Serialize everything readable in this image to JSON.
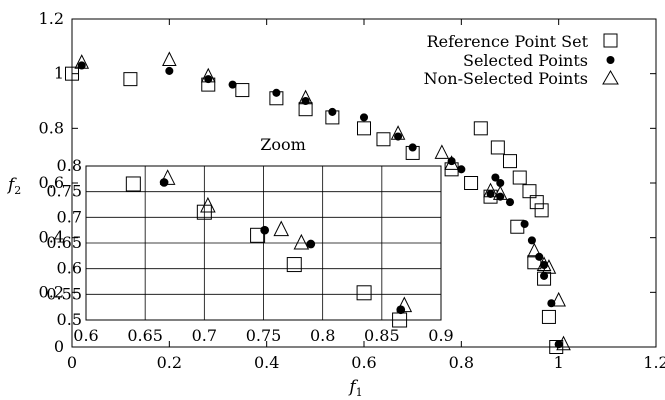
{
  "chart_data": [
    {
      "type": "scatter",
      "title": "",
      "xlabel": "f",
      "xlabel_sub": "1",
      "ylabel": "f",
      "ylabel_sub": "2",
      "xlim": [
        0,
        1.2
      ],
      "ylim": [
        0,
        1.2
      ],
      "xticks": [
        "0",
        "0.2",
        "0.4",
        "0.6",
        "0.8",
        "1",
        "1.2"
      ],
      "yticks": [
        "0",
        "0.2",
        "0.4",
        "0.6",
        "0.8",
        "1",
        "1.2"
      ],
      "grid": false,
      "legend_position": "top-right",
      "series": [
        {
          "name": "Reference Point Set",
          "marker": "open-square",
          "points": [
            [
              0.0,
              1.0
            ],
            [
              0.12,
              0.98
            ],
            [
              0.28,
              0.96
            ],
            [
              0.35,
              0.94
            ],
            [
              0.42,
              0.91
            ],
            [
              0.48,
              0.87
            ],
            [
              0.535,
              0.84
            ],
            [
              0.6,
              0.8
            ],
            [
              0.64,
              0.76
            ],
            [
              0.7,
              0.71
            ],
            [
              0.78,
              0.65
            ],
            [
              0.82,
              0.6
            ],
            [
              0.86,
              0.55
            ],
            [
              0.915,
              0.44
            ],
            [
              0.95,
              0.31
            ],
            [
              0.97,
              0.25
            ],
            [
              0.98,
              0.11
            ],
            [
              0.995,
              0.0
            ],
            [
              0.84,
              0.8
            ],
            [
              0.875,
              0.73
            ],
            [
              0.9,
              0.68
            ],
            [
              0.92,
              0.62
            ],
            [
              0.94,
              0.57
            ],
            [
              0.955,
              0.53
            ],
            [
              0.965,
              0.5
            ]
          ]
        },
        {
          "name": "Selected Points",
          "marker": "filled-circle",
          "points": [
            [
              0.02,
              1.03
            ],
            [
              0.2,
              1.01
            ],
            [
              0.28,
              0.98
            ],
            [
              0.33,
              0.96
            ],
            [
              0.42,
              0.93
            ],
            [
              0.48,
              0.9
            ],
            [
              0.535,
              0.86
            ],
            [
              0.6,
              0.84
            ],
            [
              0.67,
              0.77
            ],
            [
              0.7,
              0.73
            ],
            [
              0.78,
              0.68
            ],
            [
              0.8,
              0.65
            ],
            [
              0.86,
              0.56
            ],
            [
              0.88,
              0.55
            ],
            [
              0.9,
              0.53
            ],
            [
              0.93,
              0.45
            ],
            [
              0.945,
              0.39
            ],
            [
              0.96,
              0.33
            ],
            [
              0.97,
              0.3
            ],
            [
              0.985,
              0.16
            ],
            [
              1.0,
              0.01
            ],
            [
              0.87,
              0.62
            ],
            [
              0.88,
              0.6
            ],
            [
              0.97,
              0.26
            ]
          ]
        },
        {
          "name": "Non-Selected Points",
          "marker": "open-triangle",
          "points": [
            [
              0.02,
              1.04
            ],
            [
              0.2,
              1.05
            ],
            [
              0.28,
              0.99
            ],
            [
              0.48,
              0.91
            ],
            [
              0.67,
              0.78
            ],
            [
              0.76,
              0.71
            ],
            [
              0.78,
              0.67
            ],
            [
              0.86,
              0.57
            ],
            [
              0.88,
              0.56
            ],
            [
              0.95,
              0.35
            ],
            [
              0.97,
              0.3
            ],
            [
              0.98,
              0.29
            ],
            [
              1.0,
              0.17
            ],
            [
              1.01,
              0.01
            ]
          ]
        }
      ]
    },
    {
      "type": "scatter",
      "title": "Zoom",
      "xlim": [
        0.6,
        0.9
      ],
      "ylim": [
        0.5,
        0.8
      ],
      "xticks": [
        "0.6",
        "0.65",
        "0.7",
        "0.75",
        "0.8",
        "0.85",
        "0.9"
      ],
      "yticks": [
        "0.5",
        "0.55",
        "0.6",
        "0.65",
        "0.7",
        "0.75",
        "0.8"
      ],
      "grid": true,
      "series": [
        {
          "name": "Reference Point Set",
          "marker": "open-square",
          "points": [
            [
              0.64,
              0.765
            ],
            [
              0.7,
              0.71
            ],
            [
              0.745,
              0.665
            ],
            [
              0.776,
              0.608
            ],
            [
              0.835,
              0.553
            ],
            [
              0.865,
              0.5
            ]
          ]
        },
        {
          "name": "Selected Points",
          "marker": "filled-circle",
          "points": [
            [
              0.666,
              0.768
            ],
            [
              0.751,
              0.675
            ],
            [
              0.79,
              0.648
            ],
            [
              0.866,
              0.52
            ]
          ]
        },
        {
          "name": "Non-Selected Points",
          "marker": "open-triangle",
          "points": [
            [
              0.669,
              0.776
            ],
            [
              0.703,
              0.722
            ],
            [
              0.765,
              0.676
            ],
            [
              0.782,
              0.65
            ],
            [
              0.869,
              0.528
            ]
          ]
        }
      ]
    }
  ]
}
